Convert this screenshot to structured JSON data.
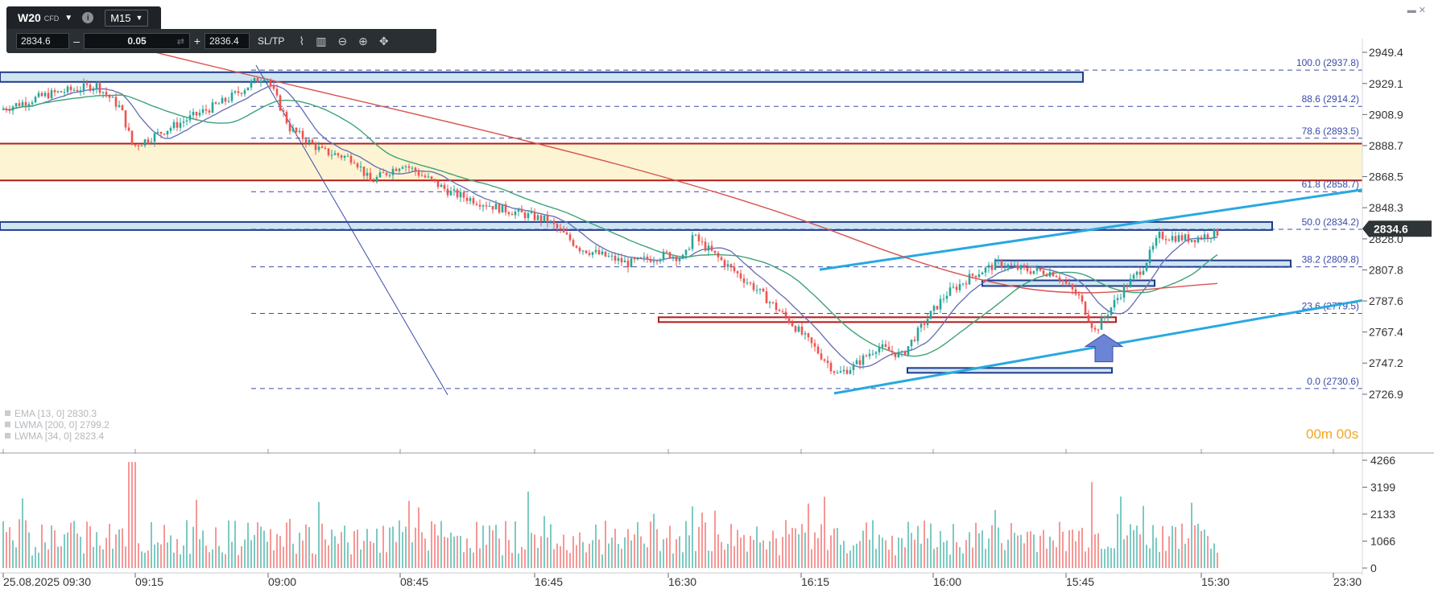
{
  "toolbar": {
    "symbol": "W20",
    "symbol_type": "CFD",
    "timeframe": "M15",
    "bid": "2834.6",
    "volume": "0.05",
    "ask": "2836.4",
    "sltp_label": "SL/TP",
    "minus": "–",
    "plus": "+",
    "window_controls": "▬ ✕"
  },
  "chart_data": {
    "type": "candlestick",
    "instrument": "W20",
    "price_axis_labels": [
      "2949.4",
      "2929.1",
      "2908.9",
      "2888.7",
      "2868.5",
      "2848.3",
      "2828.0",
      "2807.8",
      "2787.6",
      "2767.4",
      "2747.2",
      "2726.9"
    ],
    "ylim": [
      2723,
      2953
    ],
    "current_price": "2834.6",
    "time_axis_labels": [
      "25.08.2025 09:30",
      "09:15",
      "09:00",
      "08:45",
      "16:45",
      "16:30",
      "16:15",
      "16:00",
      "15:45",
      "15:30",
      "23:30"
    ],
    "fibonacci_levels": [
      {
        "label": "100.0 (2937.8)",
        "value": 2937.8
      },
      {
        "label": "88.6 (2914.2)",
        "value": 2914.2
      },
      {
        "label": "78.6 (2893.5)",
        "value": 2893.5
      },
      {
        "label": "61.8 (2858.7)",
        "value": 2858.7
      },
      {
        "label": "50.0 (2834.2)",
        "value": 2834.2
      },
      {
        "label": "38.2 (2809.8)",
        "value": 2809.8
      },
      {
        "label": "23.6 (2779.5)",
        "value": 2779.5
      },
      {
        "label": "0.0 (2730.6)",
        "value": 2730.6
      }
    ],
    "indicators": [
      {
        "label": "EMA [13, 0] 2830.3",
        "color": "#6a74b8"
      },
      {
        "label": "LWMA [200, 0] 2799.2",
        "color": "#d9534f"
      },
      {
        "label": "LWMA [34, 0] 2823.4",
        "color": "#3ea376"
      }
    ],
    "volume_axis_labels": [
      "4266",
      "3199",
      "2133",
      "1066",
      "0"
    ],
    "volume_max": 4266,
    "overlay_text": "00m 00s",
    "colors": {
      "up": "#26a69a",
      "down": "#ef5350",
      "channel": "#29a8e0",
      "zone_blue_fill": "#cfe6f2",
      "zone_blue_border": "#1f3a8a",
      "zone_yellow_fill": "#fdf4d3",
      "zone_red": "#b31b1b",
      "fib": "#3a4aa8",
      "ema": "#6a74b8",
      "lwma200": "#d9534f",
      "lwma34": "#3ea376"
    }
  }
}
